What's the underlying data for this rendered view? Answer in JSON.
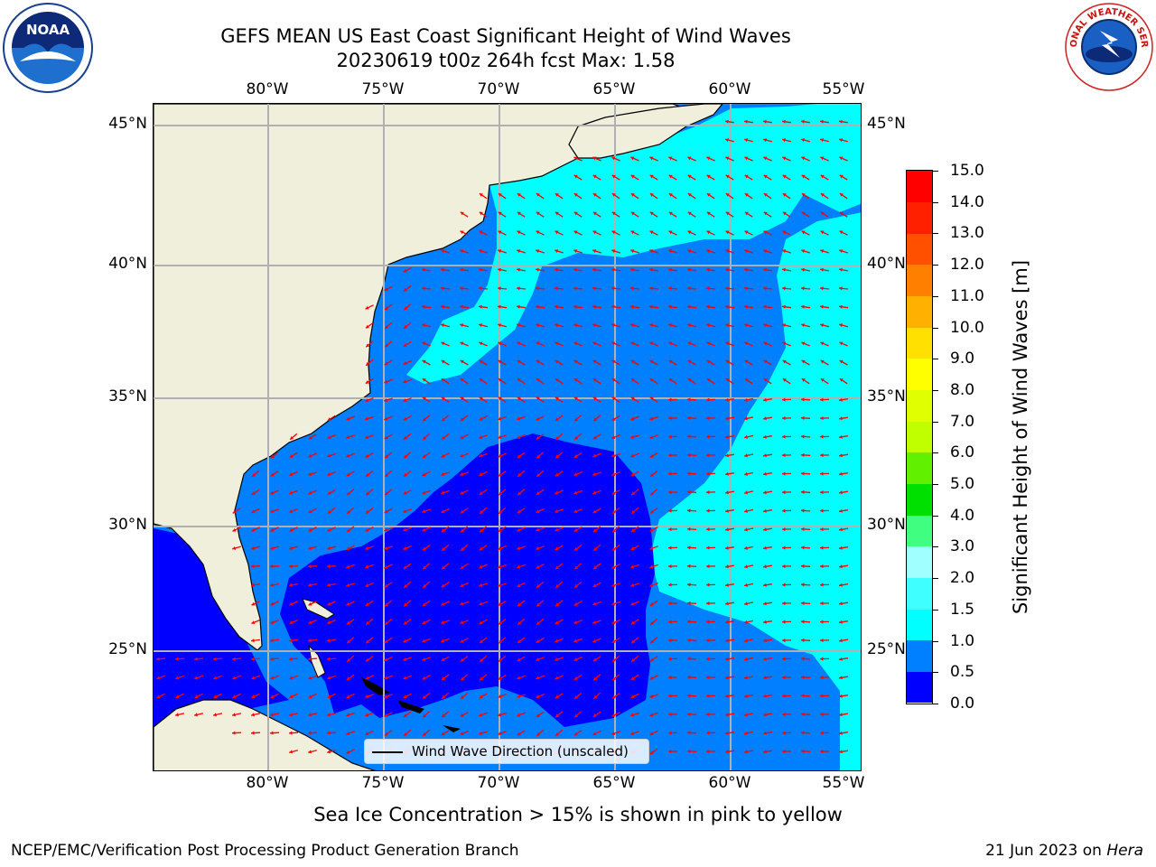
{
  "header": {
    "title_line1": "GEFS MEAN US East Coast Significant Height of Wind Waves",
    "title_line2": "20230619 t00z 264h fcst   Max: 1.58"
  },
  "logos": {
    "left": "noaa-logo",
    "left_text": "NOAA",
    "right": "national-weather-service-logo",
    "right_text": "NATIONAL WEATHER SERVICE"
  },
  "map": {
    "lon_labels": [
      "80°W",
      "75°W",
      "70°W",
      "65°W",
      "60°W",
      "55°W"
    ],
    "lat_labels": [
      "45°N",
      "40°N",
      "35°N",
      "30°N",
      "25°N"
    ],
    "legend_label": "Wind Wave Direction (unscaled)",
    "arrow_color": "#ff0000",
    "land_color": "#efefdc",
    "gridline_color": "#b0b0b0"
  },
  "colorbar": {
    "title": "Significant Height of Wind Waves [m]",
    "ticks": [
      "0.0",
      "0.5",
      "1.0",
      "1.5",
      "2.0",
      "3.0",
      "4.0",
      "5.0",
      "6.0",
      "7.0",
      "8.0",
      "9.0",
      "10.0",
      "11.0",
      "12.0",
      "13.0",
      "14.0",
      "15.0"
    ],
    "colors": [
      "#0000ff",
      "#0080ff",
      "#00ffff",
      "#40ffff",
      "#a0ffff",
      "#40ff80",
      "#00e000",
      "#60f000",
      "#c0ff00",
      "#e0ff00",
      "#ffff00",
      "#ffe000",
      "#ffb000",
      "#ff8000",
      "#ff5000",
      "#ff2000",
      "#ff0000"
    ]
  },
  "subnote": "Sea Ice Concentration > 15% is shown in pink to yellow",
  "footer": {
    "left": "NCEP/EMC/Verification Post Processing Product Generation Branch",
    "right_date": "21 Jun 2023 on",
    "right_host": "Hera"
  }
}
